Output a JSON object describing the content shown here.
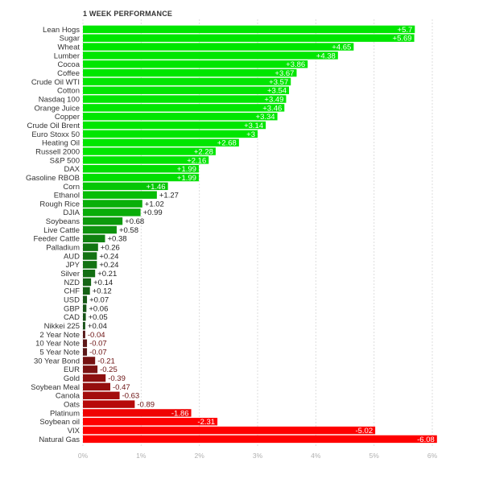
{
  "chart_data": {
    "type": "bar",
    "orientation": "horizontal",
    "title": "1 WEEK PERFORMANCE",
    "xlabel": "",
    "ylabel": "",
    "xlim": [
      0,
      6
    ],
    "x_ticks": [
      "0%",
      "1%",
      "2%",
      "3%",
      "4%",
      "5%",
      "6%"
    ],
    "grid": "vertical dashed",
    "categories": [
      "Lean Hogs",
      "Sugar",
      "Wheat",
      "Lumber",
      "Cocoa",
      "Coffee",
      "Crude Oil WTI",
      "Cotton",
      "Nasdaq 100",
      "Orange Juice",
      "Copper",
      "Crude Oil Brent",
      "Euro Stoxx 50",
      "Heating Oil",
      "Russell 2000",
      "S&P 500",
      "DAX",
      "Gasoline RBOB",
      "Corn",
      "Ethanol",
      "Rough Rice",
      "DJIA",
      "Soybeans",
      "Live Cattle",
      "Feeder Cattle",
      "Palladium",
      "AUD",
      "JPY",
      "Silver",
      "NZD",
      "CHF",
      "USD",
      "GBP",
      "CAD",
      "Nikkei 225",
      "2 Year Note",
      "10 Year Note",
      "5 Year Note",
      "30 Year Bond",
      "EUR",
      "Gold",
      "Soybean Meal",
      "Canola",
      "Oats",
      "Platinum",
      "Soybean oil",
      "VIX",
      "Natural Gas"
    ],
    "values": [
      5.7,
      5.69,
      4.65,
      4.38,
      3.86,
      3.67,
      3.57,
      3.54,
      3.49,
      3.46,
      3.34,
      3.14,
      3,
      2.68,
      2.28,
      2.16,
      1.99,
      1.99,
      1.46,
      1.27,
      1.02,
      0.99,
      0.68,
      0.58,
      0.38,
      0.26,
      0.24,
      0.24,
      0.21,
      0.14,
      0.12,
      0.07,
      0.06,
      0.05,
      0.04,
      -0.04,
      -0.07,
      -0.07,
      -0.21,
      -0.25,
      -0.39,
      -0.47,
      -0.63,
      -0.89,
      -1.86,
      -2.31,
      -5.02,
      -6.08
    ],
    "value_labels": [
      "+5.7",
      "+5.69",
      "+4.65",
      "+4.38",
      "+3.86",
      "+3.67",
      "+3.57",
      "+3.54",
      "+3.49",
      "+3.46",
      "+3.34",
      "+3.14",
      "+3",
      "+2.68",
      "+2.28",
      "+2.16",
      "+1.99",
      "+1.99",
      "+1.46",
      "+1.27",
      "+1.02",
      "+0.99",
      "+0.68",
      "+0.58",
      "+0.38",
      "+0.26",
      "+0.24",
      "+0.24",
      "+0.21",
      "+0.14",
      "+0.12",
      "+0.07",
      "+0.06",
      "+0.05",
      "+0.04",
      "-0.04",
      "-0.07",
      "-0.07",
      "-0.21",
      "-0.25",
      "-0.39",
      "-0.47",
      "-0.63",
      "-0.89",
      "-1.86",
      "-2.31",
      "-5.02",
      "-6.08"
    ],
    "colors": {
      "positive_strong": "#00e600",
      "positive_weak": "#1c3a1c",
      "negative_weak": "#3a1c1c",
      "negative_strong": "#ff0000",
      "grid": "#dddddd",
      "tick_text": "#b0b0b0"
    }
  }
}
